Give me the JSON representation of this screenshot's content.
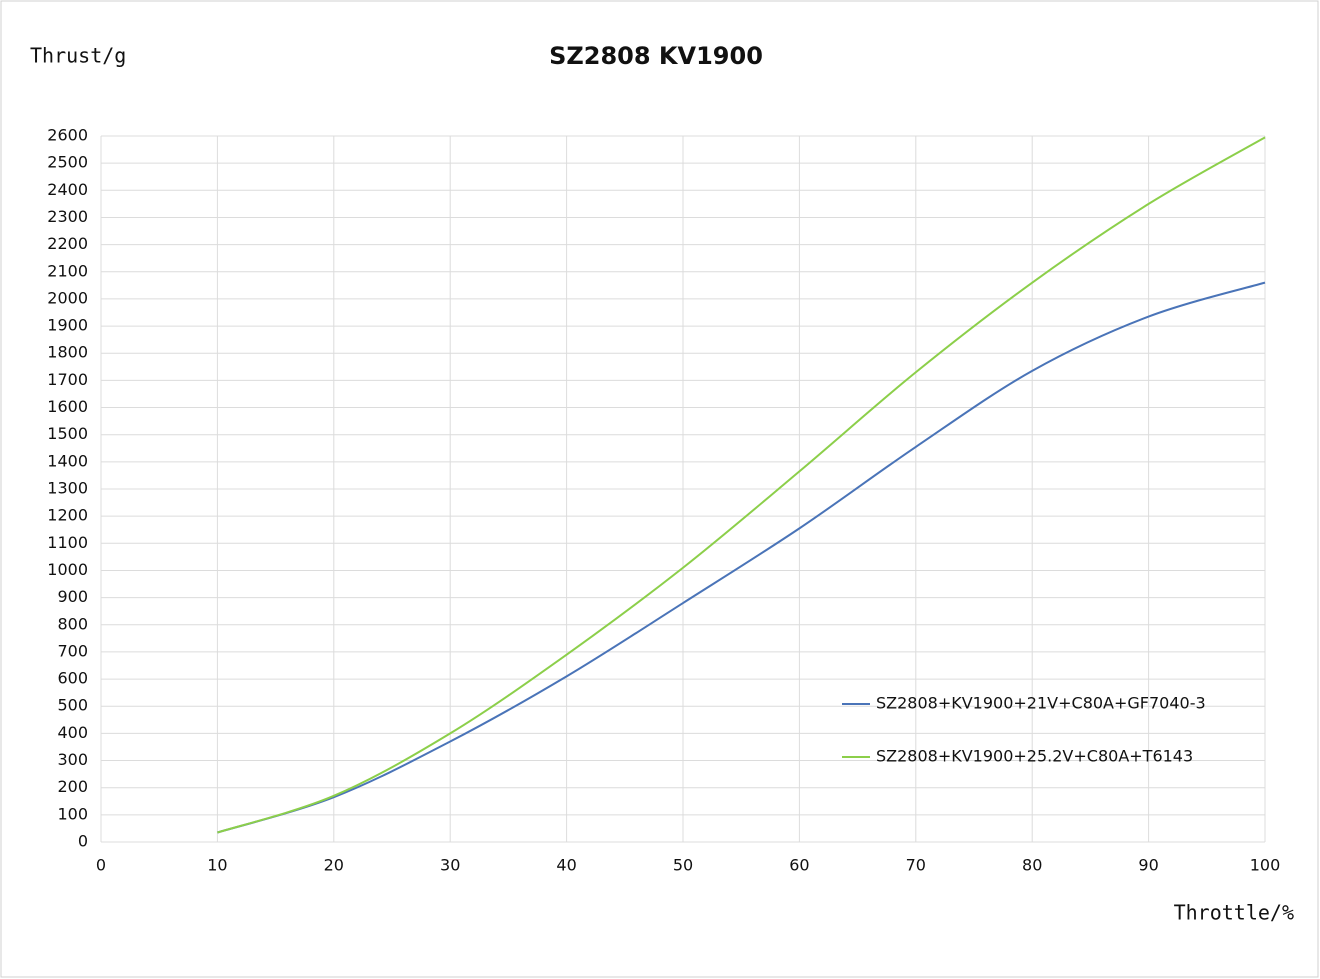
{
  "chart_data": {
    "type": "line",
    "title": "SZ2808 KV1900",
    "y_label": "Thrust/g",
    "x_label": "Throttle/%",
    "x": [
      10,
      20,
      30,
      40,
      50,
      60,
      70,
      80,
      90,
      100
    ],
    "series": [
      {
        "name": "SZ2808+KV1900+21V+C80A+GF7040-3",
        "color": "#4a74b8",
        "values": [
          35,
          165,
          370,
          610,
          880,
          1155,
          1455,
          1735,
          1935,
          2060
        ]
      },
      {
        "name": "SZ2808+KV1900+25.2V+C80A+T6143",
        "color": "#8ccf4a",
        "values": [
          35,
          170,
          400,
          690,
          1010,
          1365,
          1730,
          2060,
          2350,
          2595
        ]
      }
    ],
    "xlim": [
      0,
      100
    ],
    "xticks": [
      0,
      10,
      20,
      30,
      40,
      50,
      60,
      70,
      80,
      90,
      100
    ],
    "ylim": [
      0,
      2600
    ],
    "yticks": [
      0,
      100,
      200,
      300,
      400,
      500,
      600,
      700,
      800,
      900,
      1000,
      1100,
      1200,
      1300,
      1400,
      1500,
      1600,
      1700,
      1800,
      1900,
      2000,
      2100,
      2200,
      2300,
      2400,
      2500,
      2600
    ],
    "grid": true
  }
}
